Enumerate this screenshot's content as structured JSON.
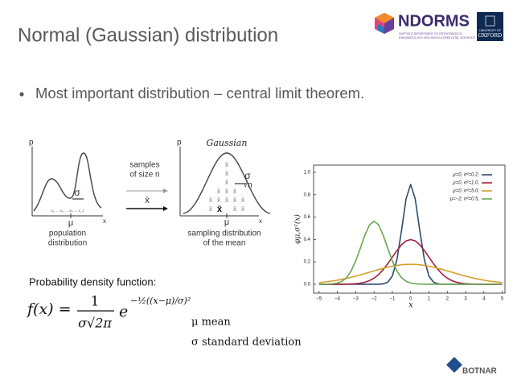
{
  "header": {
    "title": "Normal (Gaussian) distribution",
    "logo_main": "NDORMS",
    "logo_sub": [
      "NUFFIELD DEPARTMENT OF ORTHOPAEDICS,",
      "RHEUMATOLOGY AND MUSCULOSKELETAL SCIENCES"
    ],
    "logo_right": [
      "UNIVERSITY OF",
      "OXFORD"
    ]
  },
  "bullet": "Most important distribution – central limit theorem.",
  "diagram": {
    "p_left": "p",
    "x_left": "x",
    "samples_line": "x₁, ... x₂, ... xₙ, ... x_z",
    "mu_left": "μ",
    "sigma_left": "σ",
    "population_label": [
      "population",
      "distribution"
    ],
    "samples_label": [
      "samples",
      "of size n"
    ],
    "xbar_arrow": "x̄",
    "gaussian": "Gaussian",
    "p_right": "p",
    "x_right": "x",
    "mu_right": "μ",
    "sigma_right": "σ",
    "sqrt_n": "√n",
    "xbar_mark": "x̄",
    "sampling_label": [
      "sampling distribution",
      "of the mean"
    ]
  },
  "formula": {
    "heading": "Probability density function:",
    "lhs": "f(x) =",
    "numerator": "1",
    "denominator": "σ√2π",
    "base": "e",
    "exponent": "−½((x−μ)/σ)²",
    "mu_note": "μ mean",
    "sigma_note": "σ standard deviation"
  },
  "footer": {
    "logo": "BOTNAR"
  },
  "chart_data": {
    "type": "line",
    "xlabel": "x",
    "ylabel": "φμ,σ²(x)",
    "x": [
      -5,
      -4.75,
      -4.5,
      -4.25,
      -4,
      -3.75,
      -3.5,
      -3.25,
      -3,
      -2.75,
      -2.5,
      -2.25,
      -2,
      -1.75,
      -1.5,
      -1.25,
      -1,
      -0.75,
      -0.5,
      -0.25,
      0,
      0.25,
      0.5,
      0.75,
      1,
      1.25,
      1.5,
      1.75,
      2,
      2.25,
      2.5,
      2.75,
      3,
      3.25,
      3.5,
      3.75,
      4,
      4.25,
      4.5,
      4.75,
      5
    ],
    "series": [
      {
        "name": "μ=0,    σ²=0.2,",
        "color": "#2f4b6c",
        "values": [
          0,
          0,
          0,
          0,
          0,
          0,
          0,
          0,
          0,
          0,
          0,
          0,
          0,
          0,
          0.003,
          0.018,
          0.073,
          0.219,
          0.477,
          0.763,
          0.892,
          0.763,
          0.477,
          0.219,
          0.073,
          0.018,
          0.003,
          0,
          0,
          0,
          0,
          0,
          0,
          0,
          0,
          0,
          0,
          0,
          0,
          0,
          0
        ]
      },
      {
        "name": "μ=0,    σ²=1.0,",
        "color": "#a3213e",
        "values": [
          0,
          0,
          0,
          0,
          0,
          0,
          0.001,
          0.002,
          0.004,
          0.009,
          0.018,
          0.032,
          0.054,
          0.086,
          0.13,
          0.183,
          0.242,
          0.301,
          0.352,
          0.387,
          0.399,
          0.387,
          0.352,
          0.301,
          0.242,
          0.183,
          0.13,
          0.086,
          0.054,
          0.032,
          0.018,
          0.009,
          0.004,
          0.002,
          0.001,
          0,
          0,
          0,
          0,
          0,
          0
        ]
      },
      {
        "name": "μ=0,    σ²=5.0,",
        "color": "#d3a02a",
        "values": [
          0.015,
          0.019,
          0.024,
          0.029,
          0.036,
          0.044,
          0.052,
          0.062,
          0.072,
          0.084,
          0.095,
          0.107,
          0.119,
          0.131,
          0.142,
          0.152,
          0.161,
          0.168,
          0.174,
          0.177,
          0.178,
          0.177,
          0.174,
          0.168,
          0.161,
          0.152,
          0.142,
          0.131,
          0.119,
          0.107,
          0.095,
          0.084,
          0.072,
          0.062,
          0.052,
          0.044,
          0.036,
          0.029,
          0.024,
          0.019,
          0.015
        ]
      },
      {
        "name": "μ=−2, σ²=0.5,",
        "color": "#6aa84f",
        "values": [
          0,
          0,
          0.001,
          0.004,
          0.01,
          0.026,
          0.059,
          0.118,
          0.208,
          0.321,
          0.439,
          0.53,
          0.564,
          0.53,
          0.439,
          0.321,
          0.208,
          0.118,
          0.059,
          0.026,
          0.01,
          0.004,
          0.001,
          0,
          0,
          0,
          0,
          0,
          0,
          0,
          0,
          0,
          0,
          0,
          0,
          0,
          0,
          0,
          0,
          0,
          0
        ]
      }
    ],
    "xlim": [
      -5.3,
      5.15
    ],
    "ylim": [
      -0.08,
      1.065
    ],
    "xticks": [
      {
        "value": -5,
        "label": "−5"
      },
      {
        "value": -4,
        "label": "−4"
      },
      {
        "value": -3,
        "label": "−3"
      },
      {
        "value": -2,
        "label": "−2"
      },
      {
        "value": -1,
        "label": "−1"
      },
      0,
      1,
      2,
      3,
      4,
      5
    ],
    "yticks": [
      {
        "value": 0,
        "label": "0.0"
      },
      {
        "value": 0.2,
        "label": "0.2"
      },
      {
        "value": 0.4,
        "label": "0.4"
      },
      {
        "value": 0.6,
        "label": "0.6"
      },
      {
        "value": 0.8,
        "label": "0.8"
      },
      {
        "value": 1,
        "label": "1.0"
      }
    ],
    "grid": false,
    "legend": "upper right"
  }
}
